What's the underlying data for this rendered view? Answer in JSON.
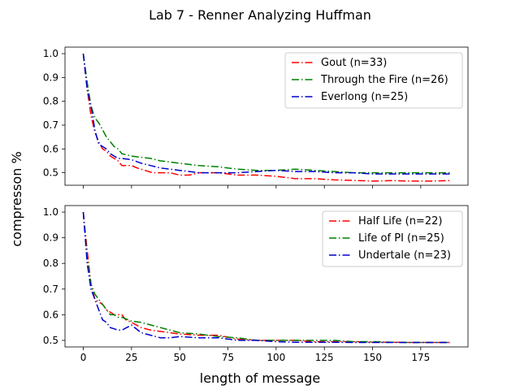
{
  "figure": {
    "suptitle": "Lab 7 - Renner Analyzing Huffman",
    "xlabel": "length of message",
    "ylabel": "compresson %"
  },
  "chart_data": [
    {
      "type": "line",
      "xlim": [
        -9.5,
        199.5
      ],
      "ylim": [
        0.4475,
        1.0275
      ],
      "xticks": [
        0,
        25,
        50,
        75,
        100,
        125,
        150,
        175
      ],
      "yticks": [
        0.5,
        0.6,
        0.7,
        0.8,
        0.9,
        1.0
      ],
      "ytick_labels": [
        "0.5",
        "0.6",
        "0.7",
        "0.8",
        "0.9",
        "1.0"
      ],
      "legend_position": "top-right",
      "series": [
        {
          "name": "Gout (n=33)",
          "color": "#ff0000",
          "points": [
            [
              0,
              1.0
            ],
            [
              2,
              0.85
            ],
            [
              4,
              0.74
            ],
            [
              6,
              0.67
            ],
            [
              8,
              0.63
            ],
            [
              10,
              0.6
            ],
            [
              12,
              0.59
            ],
            [
              14,
              0.57
            ],
            [
              16,
              0.56
            ],
            [
              18,
              0.55
            ],
            [
              20,
              0.53
            ],
            [
              22,
              0.53
            ],
            [
              25,
              0.53
            ],
            [
              28,
              0.52
            ],
            [
              32,
              0.51
            ],
            [
              36,
              0.5
            ],
            [
              40,
              0.5
            ],
            [
              45,
              0.5
            ],
            [
              50,
              0.49
            ],
            [
              55,
              0.49
            ],
            [
              60,
              0.5
            ],
            [
              70,
              0.5
            ],
            [
              80,
              0.49
            ],
            [
              90,
              0.49
            ],
            [
              100,
              0.485
            ],
            [
              110,
              0.475
            ],
            [
              120,
              0.475
            ],
            [
              130,
              0.47
            ],
            [
              140,
              0.468
            ],
            [
              150,
              0.465
            ],
            [
              160,
              0.467
            ],
            [
              170,
              0.465
            ],
            [
              180,
              0.465
            ],
            [
              190,
              0.467
            ]
          ]
        },
        {
          "name": "Through the Fire (n=26)",
          "color": "#008000",
          "points": [
            [
              0,
              1.0
            ],
            [
              2,
              0.88
            ],
            [
              4,
              0.78
            ],
            [
              6,
              0.73
            ],
            [
              8,
              0.71
            ],
            [
              10,
              0.68
            ],
            [
              12,
              0.65
            ],
            [
              14,
              0.63
            ],
            [
              16,
              0.61
            ],
            [
              18,
              0.6
            ],
            [
              20,
              0.58
            ],
            [
              25,
              0.57
            ],
            [
              30,
              0.565
            ],
            [
              35,
              0.56
            ],
            [
              40,
              0.55
            ],
            [
              45,
              0.545
            ],
            [
              50,
              0.54
            ],
            [
              55,
              0.535
            ],
            [
              60,
              0.53
            ],
            [
              70,
              0.525
            ],
            [
              80,
              0.515
            ],
            [
              90,
              0.51
            ],
            [
              100,
              0.51
            ],
            [
              110,
              0.515
            ],
            [
              120,
              0.51
            ],
            [
              130,
              0.505
            ],
            [
              140,
              0.5
            ],
            [
              150,
              0.5
            ],
            [
              160,
              0.5
            ],
            [
              170,
              0.5
            ],
            [
              180,
              0.5
            ],
            [
              190,
              0.5
            ]
          ]
        },
        {
          "name": "Everlong (n=25)",
          "color": "#0000cc",
          "points": [
            [
              0,
              1.0
            ],
            [
              2,
              0.85
            ],
            [
              4,
              0.78
            ],
            [
              6,
              0.68
            ],
            [
              8,
              0.62
            ],
            [
              10,
              0.61
            ],
            [
              12,
              0.6
            ],
            [
              14,
              0.58
            ],
            [
              16,
              0.57
            ],
            [
              18,
              0.56
            ],
            [
              20,
              0.56
            ],
            [
              25,
              0.555
            ],
            [
              30,
              0.54
            ],
            [
              35,
              0.53
            ],
            [
              40,
              0.52
            ],
            [
              45,
              0.515
            ],
            [
              50,
              0.51
            ],
            [
              55,
              0.505
            ],
            [
              60,
              0.5
            ],
            [
              70,
              0.5
            ],
            [
              80,
              0.5
            ],
            [
              90,
              0.505
            ],
            [
              100,
              0.51
            ],
            [
              110,
              0.505
            ],
            [
              120,
              0.505
            ],
            [
              130,
              0.5
            ],
            [
              140,
              0.5
            ],
            [
              150,
              0.495
            ],
            [
              160,
              0.495
            ],
            [
              170,
              0.495
            ],
            [
              180,
              0.495
            ],
            [
              190,
              0.495
            ]
          ]
        }
      ]
    },
    {
      "type": "line",
      "xlim": [
        -9.5,
        199.5
      ],
      "ylim": [
        0.4745,
        1.0255
      ],
      "xticks": [
        0,
        25,
        50,
        75,
        100,
        125,
        150,
        175
      ],
      "xtick_labels": [
        "0",
        "25",
        "50",
        "75",
        "100",
        "125",
        "150",
        "175"
      ],
      "yticks": [
        0.5,
        0.6,
        0.7,
        0.8,
        0.9,
        1.0
      ],
      "ytick_labels": [
        "0.5",
        "0.6",
        "0.7",
        "0.8",
        "0.9",
        "1.0"
      ],
      "legend_position": "top-right",
      "series": [
        {
          "name": "Half Life (n=22)",
          "color": "#ff0000",
          "points": [
            [
              0,
              1.0
            ],
            [
              2,
              0.85
            ],
            [
              4,
              0.72
            ],
            [
              6,
              0.66
            ],
            [
              8,
              0.65
            ],
            [
              10,
              0.64
            ],
            [
              12,
              0.62
            ],
            [
              14,
              0.61
            ],
            [
              16,
              0.6
            ],
            [
              18,
              0.6
            ],
            [
              20,
              0.6
            ],
            [
              22,
              0.58
            ],
            [
              25,
              0.57
            ],
            [
              30,
              0.55
            ],
            [
              35,
              0.54
            ],
            [
              40,
              0.535
            ],
            [
              45,
              0.53
            ],
            [
              50,
              0.525
            ],
            [
              60,
              0.52
            ],
            [
              70,
              0.52
            ],
            [
              80,
              0.505
            ],
            [
              90,
              0.5
            ],
            [
              100,
              0.5
            ],
            [
              110,
              0.5
            ],
            [
              120,
              0.495
            ],
            [
              130,
              0.495
            ],
            [
              140,
              0.495
            ],
            [
              150,
              0.493
            ],
            [
              160,
              0.493
            ],
            [
              170,
              0.492
            ],
            [
              180,
              0.492
            ],
            [
              190,
              0.492
            ]
          ]
        },
        {
          "name": "Life of PI (n=25)",
          "color": "#008000",
          "points": [
            [
              0,
              1.0
            ],
            [
              2,
              0.82
            ],
            [
              4,
              0.72
            ],
            [
              6,
              0.68
            ],
            [
              8,
              0.66
            ],
            [
              10,
              0.64
            ],
            [
              12,
              0.62
            ],
            [
              14,
              0.6
            ],
            [
              16,
              0.6
            ],
            [
              18,
              0.59
            ],
            [
              20,
              0.59
            ],
            [
              25,
              0.575
            ],
            [
              30,
              0.57
            ],
            [
              35,
              0.56
            ],
            [
              40,
              0.55
            ],
            [
              45,
              0.54
            ],
            [
              50,
              0.53
            ],
            [
              60,
              0.525
            ],
            [
              70,
              0.515
            ],
            [
              80,
              0.51
            ],
            [
              90,
              0.5
            ],
            [
              100,
              0.5
            ],
            [
              110,
              0.5
            ],
            [
              120,
              0.5
            ],
            [
              130,
              0.5
            ],
            [
              140,
              0.495
            ],
            [
              150,
              0.495
            ],
            [
              160,
              0.493
            ],
            [
              170,
              0.492
            ],
            [
              180,
              0.492
            ],
            [
              190,
              0.492
            ]
          ]
        },
        {
          "name": "Undertale (n=23)",
          "color": "#0000cc",
          "points": [
            [
              0,
              1.0
            ],
            [
              2,
              0.8
            ],
            [
              4,
              0.7
            ],
            [
              6,
              0.66
            ],
            [
              8,
              0.62
            ],
            [
              10,
              0.58
            ],
            [
              12,
              0.57
            ],
            [
              14,
              0.55
            ],
            [
              16,
              0.545
            ],
            [
              18,
              0.54
            ],
            [
              20,
              0.54
            ],
            [
              25,
              0.56
            ],
            [
              30,
              0.53
            ],
            [
              35,
              0.52
            ],
            [
              40,
              0.51
            ],
            [
              45,
              0.51
            ],
            [
              50,
              0.515
            ],
            [
              60,
              0.51
            ],
            [
              70,
              0.51
            ],
            [
              80,
              0.5
            ],
            [
              90,
              0.5
            ],
            [
              100,
              0.495
            ],
            [
              110,
              0.493
            ],
            [
              120,
              0.493
            ],
            [
              130,
              0.493
            ],
            [
              140,
              0.492
            ],
            [
              150,
              0.492
            ],
            [
              160,
              0.492
            ],
            [
              170,
              0.492
            ],
            [
              180,
              0.492
            ],
            [
              190,
              0.492
            ]
          ]
        }
      ]
    }
  ]
}
